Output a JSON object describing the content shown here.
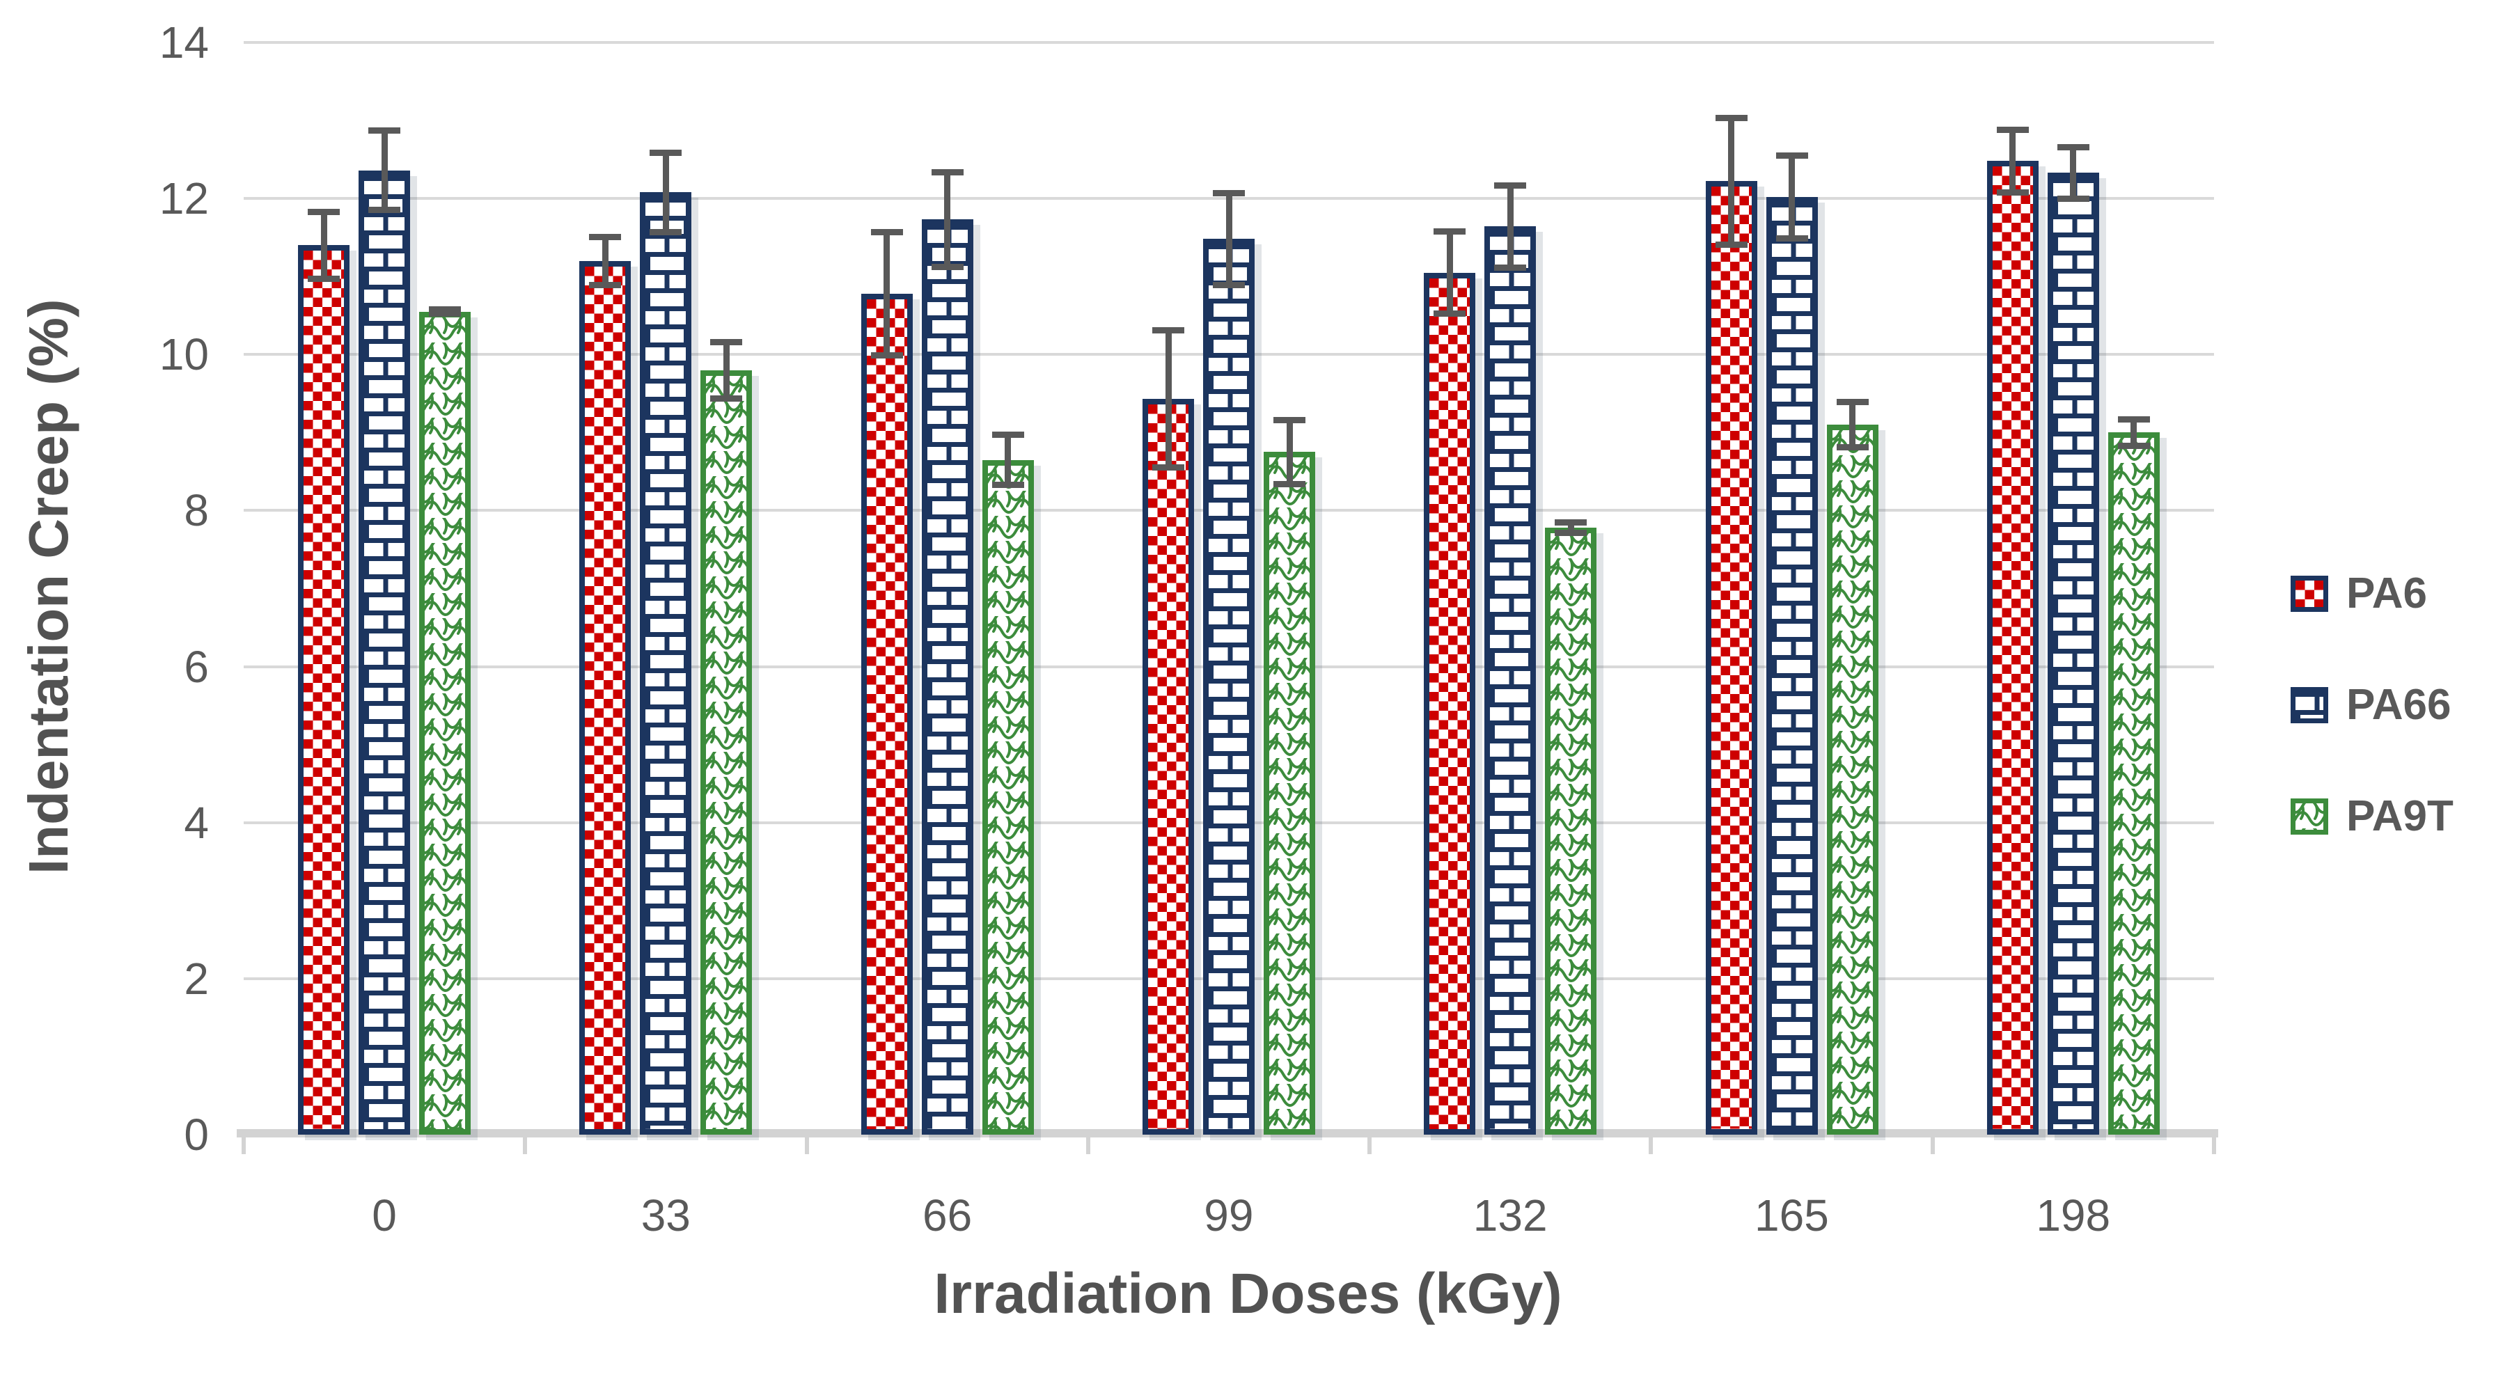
{
  "chart_data": {
    "type": "bar",
    "title": "",
    "xlabel": "Irradiation Doses (kGy)",
    "ylabel": "Indentation Creep (%)",
    "categories": [
      "0",
      "33",
      "66",
      "99",
      "132",
      "165",
      "198"
    ],
    "ylim": [
      0,
      14
    ],
    "ytick_step": 2,
    "y_tick_labels": [
      "0",
      "2",
      "4",
      "6",
      "8",
      "10",
      "12",
      "14"
    ],
    "grid": true,
    "legend_position": "right",
    "error_bar_color": "#595959",
    "series": [
      {
        "name": "PA6",
        "pattern": "checker",
        "pattern_id": "pat-checker",
        "fill_color": "#ce0000",
        "border_color": "#1c355f",
        "values": [
          11.4,
          11.2,
          10.78,
          9.43,
          11.05,
          12.22,
          12.48
        ],
        "errors": [
          0.47,
          0.35,
          0.83,
          0.92,
          0.57,
          0.85,
          0.44
        ]
      },
      {
        "name": "PA66",
        "pattern": "brick",
        "pattern_id": "pat-brick",
        "fill_color": "#1c355f",
        "border_color": "#1c355f",
        "values": [
          12.36,
          12.08,
          11.73,
          11.48,
          11.64,
          12.02,
          12.33
        ],
        "errors": [
          0.55,
          0.55,
          0.65,
          0.63,
          0.57,
          0.57,
          0.37
        ]
      },
      {
        "name": "PA9T",
        "pattern": "scale",
        "pattern_id": "pat-scale",
        "fill_color": "#3c8c3c",
        "border_color": "#3c8c3c",
        "values": [
          10.55,
          9.8,
          8.65,
          8.75,
          7.78,
          9.1,
          9.0
        ],
        "errors": [
          0.07,
          0.4,
          0.36,
          0.45,
          0.11,
          0.33,
          0.21
        ]
      }
    ],
    "colors": {
      "gridline": "#d9d9d9",
      "axis_line": "#d3d3d3",
      "tick_text": "#595959",
      "axis_title_text": "#525252"
    }
  }
}
